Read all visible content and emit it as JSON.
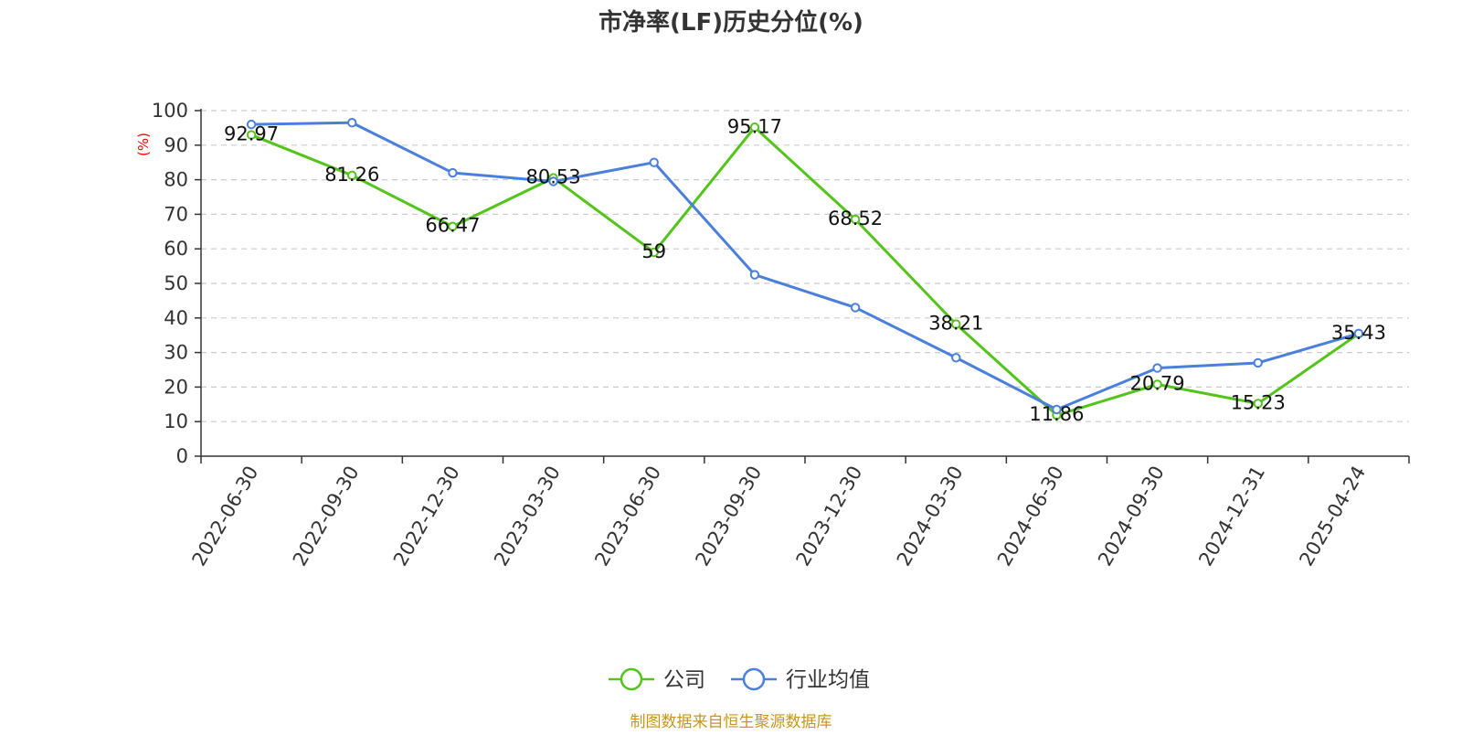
{
  "chart_data": {
    "type": "line",
    "title": "市净率(LF)历史分位(%)",
    "ylabel": "(%)",
    "xlabel": "",
    "categories": [
      "2022-06-30",
      "2022-09-30",
      "2022-12-30",
      "2023-03-30",
      "2023-06-30",
      "2023-09-30",
      "2023-12-30",
      "2024-03-30",
      "2024-06-30",
      "2024-09-30",
      "2024-12-31",
      "2025-04-24"
    ],
    "ylim": [
      0,
      100
    ],
    "yticks": [
      0,
      10,
      20,
      30,
      40,
      50,
      60,
      70,
      80,
      90,
      100
    ],
    "grid": true,
    "legend_position": "bottom-center",
    "series": [
      {
        "name": "公司",
        "color": "#52c41a",
        "values": [
          92.97,
          81.26,
          66.47,
          80.53,
          59,
          95.17,
          68.52,
          38.21,
          11.86,
          20.79,
          15.23,
          35.43
        ],
        "labels": [
          "92.97",
          "81.26",
          "66.47",
          "80.53",
          "59",
          "95.17",
          "68.52",
          "38.21",
          "11.86",
          "20.79",
          "15.23",
          "35.43"
        ]
      },
      {
        "name": "行业均值",
        "color": "#4a7fdc",
        "values": [
          96,
          96.5,
          82,
          79.5,
          85,
          52.5,
          43,
          28.5,
          13.5,
          25.5,
          27,
          35.5
        ]
      }
    ],
    "source": "制图数据来自恒生聚源数据库"
  },
  "colors": {
    "axis": "#333333",
    "grid": "#cccccc",
    "ylabel": "#ff0000",
    "source": "#c8961e"
  }
}
